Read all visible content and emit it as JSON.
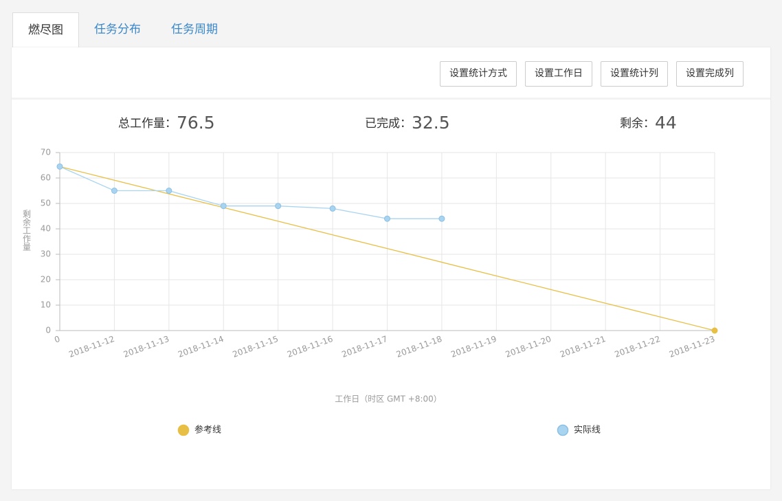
{
  "tabs": [
    "燃尽图",
    "任务分布",
    "任务周期"
  ],
  "buttons": [
    "设置统计方式",
    "设置工作日",
    "设置统计列",
    "设置完成列"
  ],
  "stats": [
    {
      "label": "总工作量：",
      "value": 76.5
    },
    {
      "label": "已完成：",
      "value": 32.5
    },
    {
      "label": "剩余：",
      "value": 44
    }
  ],
  "chart_data": {
    "type": "line",
    "x_label": "工作日（时区 GMT +8:00）",
    "y_label": "剩余工作量",
    "categories": [
      "0",
      "2018-11-12",
      "2018-11-13",
      "2018-11-14",
      "2018-11-15",
      "2018-11-16",
      "2018-11-17",
      "2018-11-18",
      "2018-11-19",
      "2018-11-20",
      "2018-11-21",
      "2018-11-22",
      "2018-11-23"
    ],
    "series": [
      {
        "name": "参考线",
        "color": "#e8bf45",
        "values": [
          64.5,
          59.125,
          53.75,
          48.375,
          43,
          37.625,
          32.25,
          26.875,
          21.5,
          16.125,
          10.75,
          5.375,
          0
        ]
      },
      {
        "name": "实际线",
        "color": "#a8d4f0",
        "values": [
          64.5,
          55,
          55,
          49,
          49,
          48,
          44,
          44,
          null,
          null,
          null,
          null,
          null
        ]
      }
    ],
    "ylim": [
      0,
      70
    ],
    "yticks": [
      0,
      10,
      20,
      30,
      40,
      50,
      60,
      70
    ],
    "grid": true
  }
}
